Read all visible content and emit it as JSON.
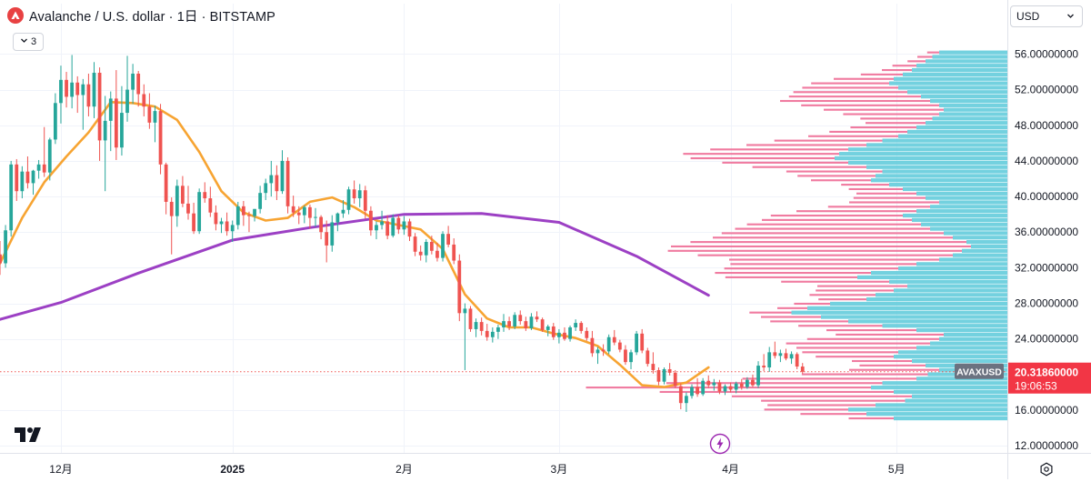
{
  "header": {
    "title": "Avalanche / U.S. dollar · 1日 · BITSTAMP",
    "indicator_count": "3",
    "currency": "USD"
  },
  "colors": {
    "up": "#26a69a",
    "down": "#ef5350",
    "ma_short": "#f7a432",
    "ma_long": "#9c40c4",
    "vp_up": "#5bc9d9",
    "vp_down": "#ee6d96",
    "price_label_bg": "#f23645"
  },
  "chart_data": {
    "type": "candlestick",
    "symbol": "AVAXUSD",
    "exchange": "BITSTAMP",
    "interval": "1日",
    "yaxis": {
      "ticks": [
        "56.00000000",
        "52.00000000",
        "48.00000000",
        "44.00000000",
        "40.00000000",
        "36.00000000",
        "32.00000000",
        "28.00000000",
        "24.00000000",
        "20.00000000",
        "16.00000000",
        "12.00000000"
      ],
      "tick_values": [
        56,
        52,
        48,
        44,
        40,
        36,
        32,
        28,
        24,
        20,
        16,
        12
      ],
      "range": [
        11.2,
        58.6
      ]
    },
    "xaxis": {
      "labels": [
        "12月",
        "2025",
        "2月",
        "3月",
        "4月",
        "5月"
      ],
      "label_dates": [
        "2024-12-01",
        "2025-01-01",
        "2025-02-01",
        "2025-03-01",
        "2025-04-01",
        "2025-05-01"
      ],
      "range": [
        "2024-11-20",
        "2025-05-21"
      ]
    },
    "candles_start_date": "2024-11-20",
    "candles": [
      [
        33.5,
        35.0,
        31.2,
        32.5
      ],
      [
        32.5,
        36.8,
        32.0,
        36.2
      ],
      [
        36.2,
        44.0,
        35.5,
        43.6
      ],
      [
        43.6,
        44.2,
        39.5,
        40.6
      ],
      [
        40.6,
        43.4,
        39.8,
        42.8
      ],
      [
        42.8,
        44.5,
        40.9,
        41.5
      ],
      [
        41.5,
        43.0,
        40.2,
        42.9
      ],
      [
        42.9,
        44.1,
        42.0,
        43.6
      ],
      [
        43.6,
        47.8,
        42.2,
        42.7
      ],
      [
        42.7,
        46.6,
        41.8,
        46.4
      ],
      [
        46.4,
        51.6,
        45.9,
        50.5
      ],
      [
        50.5,
        54.7,
        48.2,
        53.1
      ],
      [
        53.1,
        54.0,
        50.0,
        51.2
      ],
      [
        51.2,
        55.9,
        49.9,
        52.8
      ],
      [
        52.8,
        53.5,
        49.4,
        51.4
      ],
      [
        51.4,
        53.2,
        47.5,
        52.6
      ],
      [
        52.6,
        53.8,
        49.0,
        50.1
      ],
      [
        50.1,
        55.1,
        48.8,
        53.9
      ],
      [
        53.9,
        54.5,
        44.0,
        46.3
      ],
      [
        46.3,
        51.3,
        40.6,
        48.5
      ],
      [
        48.5,
        51.8,
        45.1,
        51.0
      ],
      [
        51.0,
        54.2,
        44.1,
        45.5
      ],
      [
        45.5,
        52.4,
        44.6,
        49.4
      ],
      [
        49.4,
        55.8,
        48.4,
        52.0
      ],
      [
        52.0,
        54.9,
        50.4,
        53.8
      ],
      [
        53.8,
        54.1,
        50.1,
        51.5
      ],
      [
        51.5,
        52.6,
        49.0,
        50.1
      ],
      [
        50.1,
        51.6,
        47.6,
        48.3
      ],
      [
        48.3,
        50.2,
        46.1,
        49.6
      ],
      [
        49.6,
        50.4,
        42.5,
        43.6
      ],
      [
        43.6,
        43.8,
        38.0,
        39.4
      ],
      [
        39.4,
        39.9,
        33.5,
        37.8
      ],
      [
        37.8,
        41.9,
        36.6,
        41.2
      ],
      [
        41.2,
        42.3,
        38.8,
        39.2
      ],
      [
        39.2,
        41.2,
        37.4,
        38.1
      ],
      [
        38.1,
        39.3,
        35.8,
        36.1
      ],
      [
        36.1,
        40.9,
        35.8,
        40.5
      ],
      [
        40.5,
        41.6,
        39.3,
        39.8
      ],
      [
        39.8,
        41.1,
        37.7,
        38.2
      ],
      [
        38.2,
        39.0,
        36.2,
        36.9
      ],
      [
        36.9,
        37.6,
        35.9,
        37.2
      ],
      [
        37.2,
        38.2,
        35.6,
        36.1
      ],
      [
        36.1,
        37.3,
        34.9,
        36.8
      ],
      [
        36.8,
        39.4,
        36.3,
        38.9
      ],
      [
        38.9,
        39.5,
        36.7,
        37.9
      ],
      [
        37.9,
        38.3,
        36.0,
        37.8
      ],
      [
        37.8,
        38.6,
        37.2,
        38.6
      ],
      [
        38.6,
        41.2,
        38.1,
        40.4
      ],
      [
        40.4,
        42.0,
        39.6,
        41.5
      ],
      [
        41.5,
        44.0,
        40.0,
        42.4
      ],
      [
        42.4,
        43.5,
        39.6,
        40.6
      ],
      [
        40.6,
        45.2,
        40.3,
        44.0
      ],
      [
        44.0,
        44.4,
        38.1,
        38.9
      ],
      [
        38.9,
        40.1,
        37.7,
        38.2
      ],
      [
        38.2,
        38.9,
        36.9,
        37.9
      ],
      [
        37.9,
        39.0,
        37.0,
        38.8
      ],
      [
        38.8,
        39.1,
        36.4,
        37.6
      ],
      [
        37.6,
        38.7,
        36.6,
        37.7
      ],
      [
        37.7,
        37.9,
        35.2,
        36.0
      ],
      [
        36.0,
        37.3,
        32.6,
        34.5
      ],
      [
        34.5,
        37.9,
        33.8,
        37.1
      ],
      [
        37.1,
        38.2,
        36.1,
        38.1
      ],
      [
        38.1,
        39.6,
        37.6,
        38.5
      ],
      [
        38.5,
        41.1,
        38.0,
        40.8
      ],
      [
        40.8,
        41.8,
        39.2,
        39.8
      ],
      [
        39.8,
        41.4,
        38.8,
        40.7
      ],
      [
        40.7,
        41.2,
        37.5,
        38.4
      ],
      [
        38.4,
        38.9,
        35.6,
        36.2
      ],
      [
        36.2,
        37.2,
        35.2,
        36.8
      ],
      [
        36.8,
        38.4,
        36.3,
        37.2
      ],
      [
        37.2,
        37.9,
        35.2,
        35.6
      ],
      [
        35.6,
        38.0,
        35.4,
        37.6
      ],
      [
        37.6,
        37.9,
        35.8,
        36.3
      ],
      [
        36.3,
        37.8,
        35.7,
        37.2
      ],
      [
        37.2,
        37.5,
        35.0,
        35.5
      ],
      [
        35.5,
        35.9,
        33.3,
        33.8
      ],
      [
        33.8,
        34.5,
        32.8,
        33.4
      ],
      [
        33.4,
        35.2,
        32.6,
        34.9
      ],
      [
        34.9,
        35.6,
        33.5,
        33.9
      ],
      [
        33.9,
        34.8,
        32.7,
        33.1
      ],
      [
        33.1,
        36.1,
        32.7,
        35.8
      ],
      [
        35.8,
        36.7,
        34.3,
        34.6
      ],
      [
        34.6,
        35.3,
        32.4,
        32.8
      ],
      [
        32.8,
        33.5,
        26.0,
        26.9
      ],
      [
        26.9,
        28.0,
        20.5,
        27.4
      ],
      [
        27.4,
        27.7,
        24.8,
        25.1
      ],
      [
        25.1,
        26.3,
        24.2,
        25.9
      ],
      [
        25.9,
        26.4,
        24.4,
        24.9
      ],
      [
        24.9,
        25.7,
        23.8,
        24.2
      ],
      [
        24.2,
        25.3,
        23.6,
        24.8
      ],
      [
        24.8,
        25.6,
        24.0,
        25.3
      ],
      [
        25.3,
        26.8,
        24.8,
        26.0
      ],
      [
        26.0,
        26.5,
        25.0,
        25.4
      ],
      [
        25.4,
        27.0,
        25.1,
        26.7
      ],
      [
        26.7,
        27.2,
        25.6,
        26.0
      ],
      [
        26.0,
        26.5,
        24.9,
        25.2
      ],
      [
        25.2,
        26.9,
        25.0,
        26.5
      ],
      [
        26.5,
        27.1,
        25.9,
        26.2
      ],
      [
        26.2,
        26.4,
        24.8,
        25.0
      ],
      [
        25.0,
        25.6,
        24.3,
        25.4
      ],
      [
        25.4,
        25.8,
        23.9,
        24.2
      ],
      [
        24.2,
        25.1,
        23.5,
        24.7
      ],
      [
        24.7,
        25.3,
        23.8,
        24.0
      ],
      [
        24.0,
        25.5,
        23.7,
        25.3
      ],
      [
        25.3,
        26.2,
        24.9,
        25.8
      ],
      [
        25.8,
        26.0,
        24.6,
        24.9
      ],
      [
        24.9,
        25.3,
        23.8,
        24.1
      ],
      [
        24.1,
        24.9,
        22.0,
        22.4
      ],
      [
        22.4,
        23.1,
        21.2,
        22.8
      ],
      [
        22.8,
        23.4,
        22.1,
        22.6
      ],
      [
        22.6,
        24.5,
        22.3,
        24.2
      ],
      [
        24.2,
        25.0,
        23.3,
        23.6
      ],
      [
        23.6,
        23.9,
        22.5,
        22.8
      ],
      [
        22.8,
        23.3,
        21.1,
        21.4
      ],
      [
        21.4,
        22.8,
        20.6,
        22.5
      ],
      [
        22.5,
        24.9,
        22.2,
        24.6
      ],
      [
        24.6,
        25.1,
        22.4,
        22.7
      ],
      [
        22.7,
        23.0,
        20.9,
        21.2
      ],
      [
        21.2,
        22.5,
        20.1,
        20.5
      ],
      [
        20.5,
        20.8,
        18.8,
        19.2
      ],
      [
        19.2,
        20.8,
        18.9,
        20.6
      ],
      [
        20.6,
        21.3,
        19.9,
        20.2
      ],
      [
        20.2,
        20.5,
        18.5,
        18.7
      ],
      [
        18.7,
        19.0,
        16.1,
        16.8
      ],
      [
        16.8,
        18.0,
        15.8,
        17.6
      ],
      [
        17.6,
        18.9,
        17.3,
        18.6
      ],
      [
        18.6,
        19.6,
        17.5,
        17.8
      ],
      [
        17.8,
        19.6,
        17.6,
        19.3
      ],
      [
        19.3,
        19.9,
        18.5,
        18.8
      ],
      [
        18.8,
        19.5,
        18.2,
        19.1
      ],
      [
        19.1,
        19.4,
        17.8,
        18.1
      ],
      [
        18.1,
        18.9,
        17.7,
        18.7
      ],
      [
        18.7,
        19.1,
        18.0,
        18.3
      ],
      [
        18.3,
        19.2,
        17.9,
        19.0
      ],
      [
        19.0,
        19.5,
        18.3,
        18.6
      ],
      [
        18.6,
        19.7,
        18.4,
        19.4
      ],
      [
        19.4,
        20.0,
        18.6,
        18.8
      ],
      [
        18.8,
        21.5,
        18.5,
        21.0
      ],
      [
        21.0,
        22.3,
        20.4,
        20.8
      ],
      [
        20.8,
        23.1,
        20.3,
        22.5
      ],
      [
        22.5,
        23.7,
        21.8,
        22.1
      ],
      [
        22.1,
        22.8,
        21.4,
        22.4
      ],
      [
        22.4,
        22.9,
        21.6,
        21.8
      ],
      [
        21.8,
        22.6,
        21.2,
        22.3
      ],
      [
        22.3,
        22.5,
        20.6,
        20.9
      ],
      [
        20.9,
        21.3,
        20.1,
        20.32
      ]
    ],
    "moving_averages": [
      {
        "color": "#f7a432",
        "points": [
          [
            "2024-11-20",
            32.5
          ],
          [
            "2024-11-24",
            37.6
          ],
          [
            "2024-11-28",
            41.6
          ],
          [
            "2024-12-02",
            44.5
          ],
          [
            "2024-12-06",
            47.2
          ],
          [
            "2024-12-10",
            50.6
          ],
          [
            "2024-12-14",
            50.5
          ],
          [
            "2024-12-18",
            50.1
          ],
          [
            "2024-12-22",
            48.6
          ],
          [
            "2024-12-26",
            45.0
          ],
          [
            "2024-12-30",
            40.6
          ],
          [
            "2025-01-03",
            38.2
          ],
          [
            "2025-01-07",
            37.3
          ],
          [
            "2025-01-11",
            37.6
          ],
          [
            "2025-01-15",
            39.4
          ],
          [
            "2025-01-19",
            39.9
          ],
          [
            "2025-01-23",
            38.8
          ],
          [
            "2025-01-27",
            37.3
          ],
          [
            "2025-01-31",
            36.8
          ],
          [
            "2025-02-04",
            36.3
          ],
          [
            "2025-02-08",
            34.1
          ],
          [
            "2025-02-12",
            29.0
          ],
          [
            "2025-02-16",
            26.3
          ],
          [
            "2025-02-20",
            25.3
          ],
          [
            "2025-02-24",
            25.3
          ],
          [
            "2025-02-28",
            24.6
          ],
          [
            "2025-03-04",
            24.1
          ],
          [
            "2025-03-08",
            23.2
          ],
          [
            "2025-03-12",
            21.1
          ],
          [
            "2025-03-16",
            18.8
          ],
          [
            "2025-03-20",
            18.6
          ],
          [
            "2025-03-24",
            19.1
          ],
          [
            "2025-03-28",
            20.8
          ]
        ]
      },
      {
        "color": "#9c40c4",
        "points": [
          [
            "2024-11-20",
            26.2
          ],
          [
            "2024-12-01",
            28.1
          ],
          [
            "2024-12-15",
            31.4
          ],
          [
            "2025-01-01",
            35.1
          ],
          [
            "2025-01-15",
            36.5
          ],
          [
            "2025-02-01",
            38.0
          ],
          [
            "2025-02-15",
            38.1
          ],
          [
            "2025-03-01",
            37.1
          ],
          [
            "2025-03-15",
            33.3
          ],
          [
            "2025-03-28",
            28.9
          ]
        ]
      }
    ],
    "volume_profile": {
      "price_range": [
        14.8,
        56.4
      ],
      "up_lengths": [
        0.5,
        0.62,
        0.7,
        0.58,
        0.45,
        0.42,
        0.5,
        0.6,
        0.55,
        0.4,
        0.35,
        0.3,
        0.36,
        0.42,
        0.5,
        0.48,
        0.4,
        0.34,
        0.3,
        0.28,
        0.4,
        0.55,
        0.7,
        0.82,
        0.95,
        0.88,
        0.78,
        0.62,
        0.58,
        0.5,
        0.44,
        0.52,
        0.66,
        0.6,
        0.48,
        0.4,
        0.3,
        0.24,
        0.2,
        0.16,
        0.18,
        0.24,
        0.28,
        0.34,
        0.38,
        0.42,
        0.46,
        0.4,
        0.34,
        0.3,
        0.36,
        0.4,
        0.46,
        0.52,
        0.6,
        0.58,
        0.55,
        0.62,
        0.7,
        0.76,
        0.74,
        0.7,
        0.62,
        0.55,
        0.48,
        0.44,
        0.4,
        0.36,
        0.33,
        0.3,
        0.28,
        0.3,
        0.34,
        0.38,
        0.44,
        0.48,
        0.52,
        0.5,
        0.46,
        0.42,
        0.4,
        0.36,
        0.33,
        0.3
      ],
      "down_lengths": [
        0.15,
        0.22,
        0.28,
        0.36,
        0.48,
        0.6,
        0.78,
        0.95,
        0.72,
        0.58,
        0.42,
        0.3,
        0.22,
        0.2,
        0.26,
        0.32,
        0.4,
        0.48,
        0.44,
        0.36,
        0.3,
        0.28,
        0.26,
        0.2,
        0.14,
        0.1,
        0.12,
        0.16,
        0.22,
        0.26,
        0.3,
        0.36,
        0.44,
        0.52,
        0.58,
        0.62,
        0.7,
        0.85,
        0.98,
        1.0,
        0.92,
        0.8,
        0.74,
        0.65,
        0.58,
        0.5,
        0.44,
        0.4,
        0.34,
        0.3,
        0.24,
        0.2,
        0.18,
        0.16,
        0.2,
        0.26,
        0.32,
        0.38,
        0.42,
        0.48,
        0.52,
        0.46,
        0.4,
        0.36,
        0.3,
        0.26,
        0.22,
        0.2,
        0.24,
        0.32,
        0.4,
        0.46,
        0.5,
        0.44,
        0.38,
        0.32,
        0.26,
        0.2,
        0.14,
        0.1,
        0.08,
        0.06,
        0.05,
        0.04
      ]
    },
    "last_price": {
      "symbol_label": "AVAXUSD",
      "price": "20.31860000",
      "countdown": "19:06:53",
      "value": 20.3186
    }
  }
}
